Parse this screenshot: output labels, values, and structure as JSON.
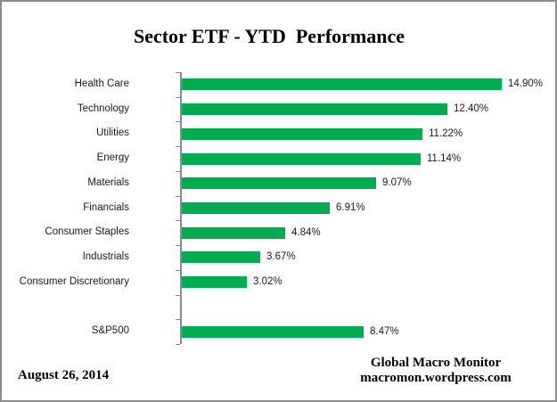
{
  "title": "Sector ETF - YTD  Performance",
  "footer": {
    "date": "August 26, 2014",
    "source_line1": "Global Macro Monitor",
    "source_line2": "macromon.wordpress.com"
  },
  "colors": {
    "bar_green": "#00ac50",
    "axis_gray": "#8a8a8a",
    "text": "#1a1a1a"
  },
  "chart_data": {
    "type": "bar",
    "orientation": "horizontal",
    "title": "Sector ETF - YTD  Performance",
    "xlabel": "",
    "ylabel": "",
    "xlim": [
      0,
      16
    ],
    "grid": false,
    "legend": false,
    "rows": [
      {
        "category": "Health Care",
        "value": 14.9,
        "label": "14.90%"
      },
      {
        "category": "Technology",
        "value": 12.4,
        "label": "12.40%"
      },
      {
        "category": "Utilities",
        "value": 11.22,
        "label": "11.22%"
      },
      {
        "category": "Energy",
        "value": 11.14,
        "label": "11.14%"
      },
      {
        "category": "Materials",
        "value": 9.07,
        "label": "9.07%"
      },
      {
        "category": "Financials",
        "value": 6.91,
        "label": "6.91%"
      },
      {
        "category": "Consumer Staples",
        "value": 4.84,
        "label": "4.84%"
      },
      {
        "category": "Industrials",
        "value": 3.67,
        "label": "3.67%"
      },
      {
        "category": "Consumer Discretionary",
        "value": 3.02,
        "label": "3.02%"
      },
      {
        "category": "",
        "value": null,
        "label": ""
      },
      {
        "category": "S&P500",
        "value": 8.47,
        "label": "8.47%"
      }
    ]
  }
}
